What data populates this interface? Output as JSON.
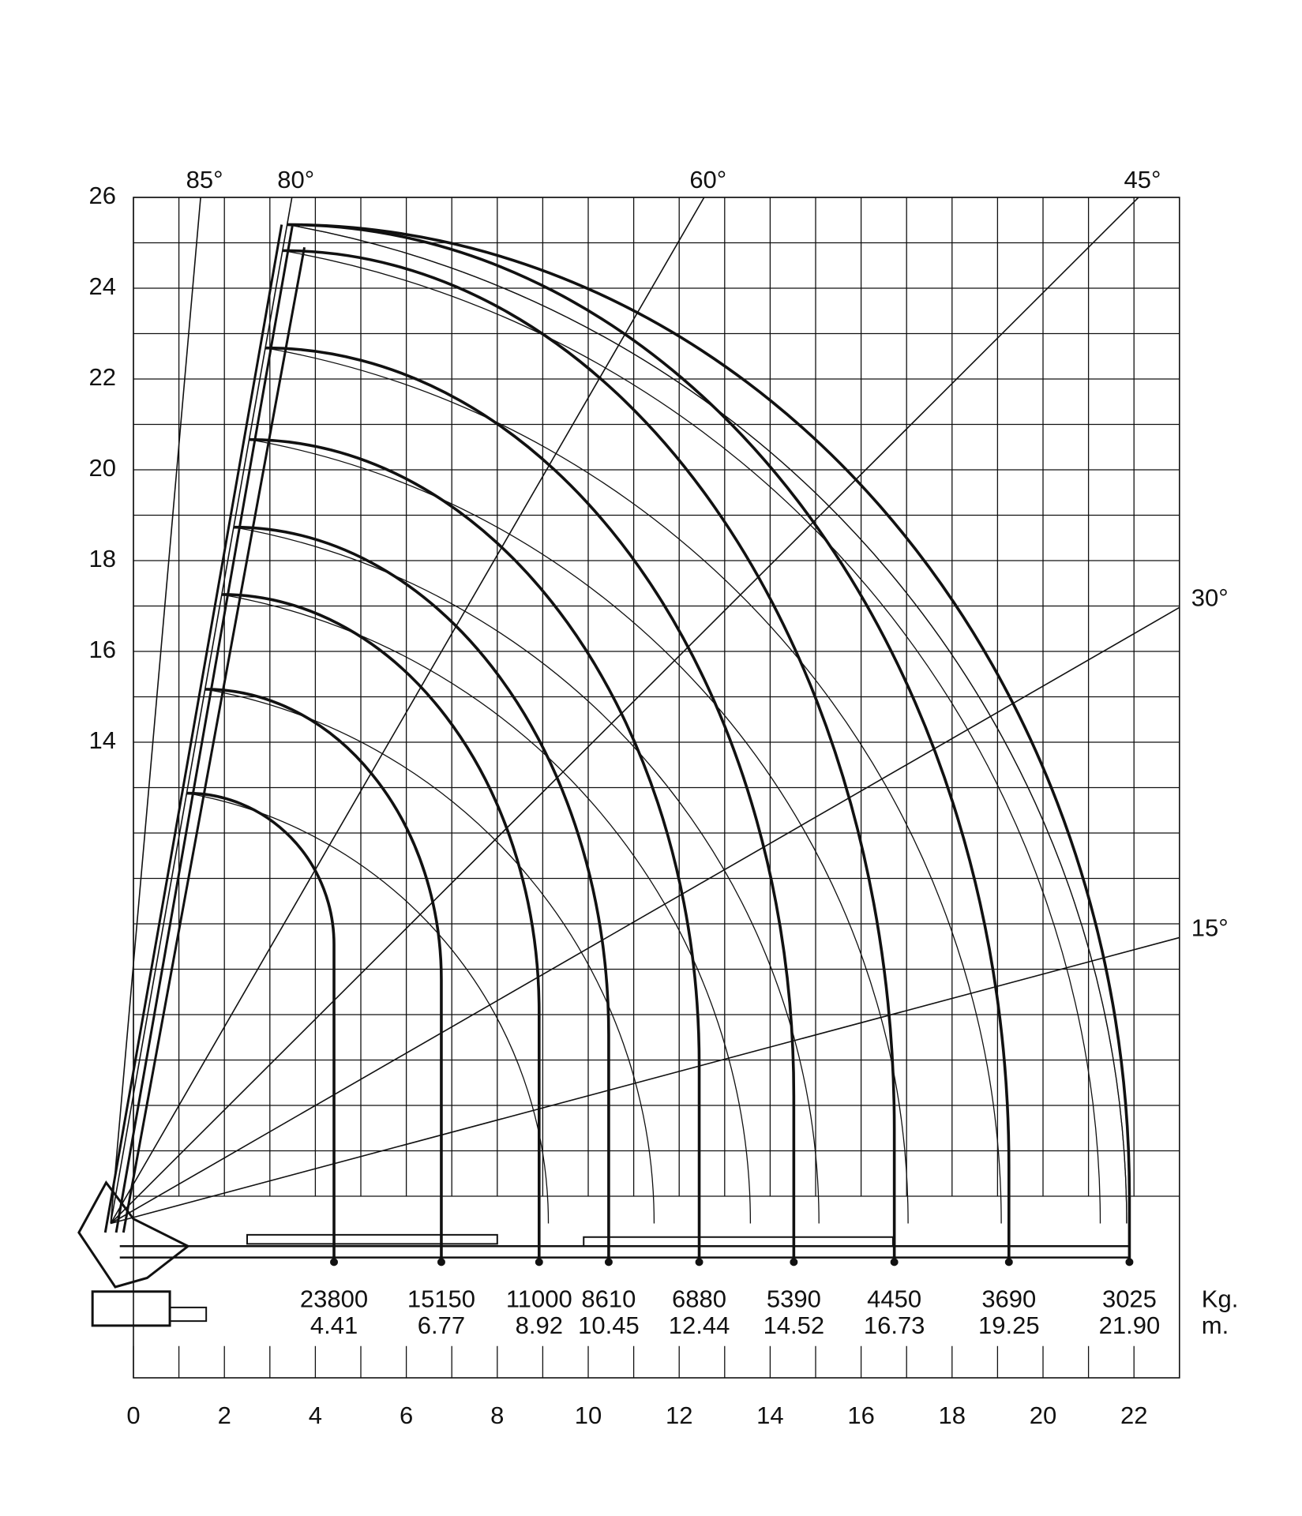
{
  "chart_data": {
    "type": "crane-load",
    "xlim": [
      0,
      23
    ],
    "xticks": [
      0,
      2,
      4,
      6,
      8,
      10,
      12,
      14,
      16,
      18,
      20,
      22
    ],
    "ylim": [
      0,
      26
    ],
    "yticks": [
      14,
      16,
      18,
      20,
      22,
      24,
      26
    ],
    "grid": true,
    "color": "#111111",
    "angles": [
      {
        "value": 85,
        "label": "85°"
      },
      {
        "value": 80,
        "label": "80°"
      },
      {
        "value": 60,
        "label": "60°"
      },
      {
        "value": 45,
        "label": "45°"
      },
      {
        "value": 30,
        "label": "30°"
      },
      {
        "value": 15,
        "label": "15°"
      }
    ],
    "loads": {
      "unit": "Kg.",
      "values": [
        23800,
        15150,
        11000,
        8610,
        6880,
        5390,
        4450,
        3690,
        3025
      ]
    },
    "radii": {
      "unit": "m.",
      "values": [
        4.41,
        6.77,
        8.92,
        10.45,
        12.44,
        14.52,
        16.73,
        19.25,
        21.9
      ],
      "value_labels": [
        "4.41",
        "6.77",
        "8.92",
        "10.45",
        "12.44",
        "14.52",
        "16.73",
        "19.25",
        "21.90"
      ]
    }
  }
}
